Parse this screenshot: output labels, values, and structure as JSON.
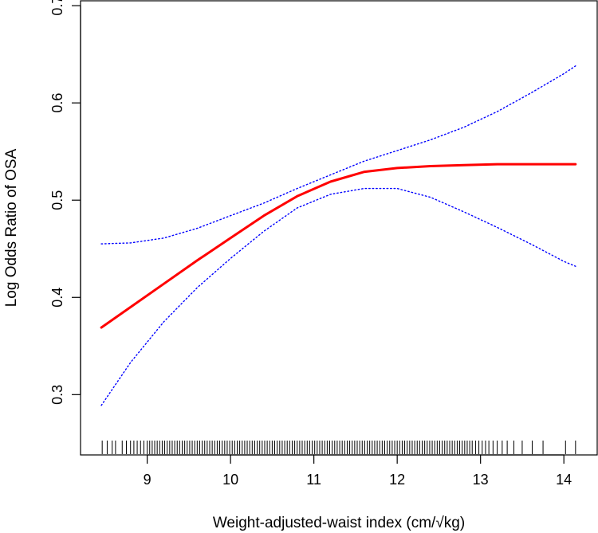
{
  "chart_data": {
    "type": "line",
    "title": "",
    "xlabel": "Weight-adjusted-waist index (cm/√kg)",
    "ylabel": "Log Odds Ratio of OSA",
    "xlim": [
      8.2,
      14.4
    ],
    "ylim": [
      0.238,
      0.705
    ],
    "x_ticks": [
      "9",
      "10",
      "11",
      "12",
      "13",
      "14"
    ],
    "y_ticks": [
      "0.3",
      "0.4",
      "0.5",
      "0.6",
      "0.7"
    ],
    "grid": false,
    "colors": {
      "fit": "#ff0000",
      "ci": "#0000ff",
      "axis": "#000000"
    },
    "series": [
      {
        "name": "fit",
        "style": "solid",
        "x": [
          8.45,
          8.8,
          9.2,
          9.6,
          10.0,
          10.4,
          10.8,
          11.2,
          11.6,
          12.0,
          12.4,
          12.8,
          13.2,
          13.6,
          14.0,
          14.14
        ],
        "y": [
          0.369,
          0.39,
          0.414,
          0.438,
          0.461,
          0.484,
          0.504,
          0.519,
          0.529,
          0.533,
          0.535,
          0.536,
          0.537,
          0.537,
          0.537,
          0.537
        ]
      },
      {
        "name": "upper 95% CI",
        "style": "dotted",
        "x": [
          8.45,
          8.8,
          9.2,
          9.6,
          10.0,
          10.4,
          10.8,
          11.2,
          11.6,
          12.0,
          12.4,
          12.8,
          13.2,
          13.6,
          14.0,
          14.14
        ],
        "y": [
          0.455,
          0.456,
          0.461,
          0.471,
          0.484,
          0.497,
          0.512,
          0.526,
          0.54,
          0.551,
          0.562,
          0.575,
          0.591,
          0.61,
          0.63,
          0.638
        ]
      },
      {
        "name": "lower 95% CI",
        "style": "dotted",
        "x": [
          8.45,
          8.8,
          9.2,
          9.6,
          10.0,
          10.4,
          10.8,
          11.2,
          11.6,
          12.0,
          12.4,
          12.8,
          13.2,
          13.6,
          14.0,
          14.14
        ],
        "y": [
          0.289,
          0.333,
          0.375,
          0.41,
          0.44,
          0.468,
          0.492,
          0.506,
          0.512,
          0.512,
          0.503,
          0.488,
          0.472,
          0.455,
          0.437,
          0.432
        ]
      }
    ],
    "rug": [
      8.46,
      8.52,
      8.58,
      8.62,
      8.7,
      8.75,
      8.8,
      8.84,
      8.88,
      8.92,
      8.96,
      9.0,
      9.03,
      9.06,
      9.09,
      9.12,
      9.15,
      9.18,
      9.21,
      9.24,
      9.27,
      9.3,
      9.33,
      9.36,
      9.39,
      9.42,
      9.45,
      9.48,
      9.51,
      9.54,
      9.57,
      9.6,
      9.63,
      9.66,
      9.69,
      9.72,
      9.75,
      9.78,
      9.81,
      9.84,
      9.87,
      9.9,
      9.93,
      9.96,
      9.99,
      10.02,
      10.05,
      10.08,
      10.11,
      10.14,
      10.17,
      10.2,
      10.23,
      10.26,
      10.29,
      10.32,
      10.35,
      10.38,
      10.41,
      10.44,
      10.47,
      10.5,
      10.53,
      10.56,
      10.59,
      10.62,
      10.65,
      10.68,
      10.71,
      10.74,
      10.77,
      10.8,
      10.83,
      10.86,
      10.89,
      10.92,
      10.95,
      10.98,
      11.01,
      11.04,
      11.07,
      11.1,
      11.13,
      11.16,
      11.19,
      11.22,
      11.25,
      11.28,
      11.31,
      11.34,
      11.37,
      11.4,
      11.43,
      11.46,
      11.49,
      11.52,
      11.55,
      11.58,
      11.61,
      11.64,
      11.67,
      11.7,
      11.73,
      11.76,
      11.79,
      11.82,
      11.85,
      11.88,
      11.91,
      11.94,
      11.97,
      12.0,
      12.03,
      12.06,
      12.09,
      12.12,
      12.15,
      12.18,
      12.21,
      12.24,
      12.27,
      12.3,
      12.33,
      12.36,
      12.39,
      12.42,
      12.45,
      12.48,
      12.51,
      12.54,
      12.57,
      12.6,
      12.63,
      12.66,
      12.69,
      12.72,
      12.75,
      12.78,
      12.81,
      12.84,
      12.87,
      12.9,
      12.94,
      12.98,
      13.02,
      13.06,
      13.1,
      13.15,
      13.2,
      13.26,
      13.32,
      13.4,
      13.5,
      13.62,
      13.75,
      14.02,
      14.14
    ]
  }
}
